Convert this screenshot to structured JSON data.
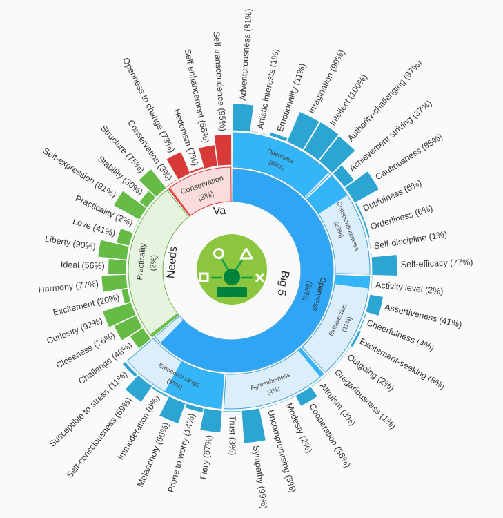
{
  "chart_data": {
    "type": "sunburst",
    "title": "",
    "center_labels": {
      "big5": "Big 5",
      "needs": "Needs",
      "values": "Va"
    },
    "groups": [
      {
        "key": "big5",
        "inner": {
          "name": "Openness",
          "value": 98
        },
        "colors": {
          "light": "#dbeef9",
          "stroke": "#3a9fd6",
          "inner_fill": "#2ea6f5",
          "dim_fill": "#33b5f7",
          "bar": "#2ca5d3"
        },
        "dimensions": [
          {
            "name": "Openness",
            "value": 98,
            "facets": [
              {
                "name": "Adventurousness",
                "value": 81
              },
              {
                "name": "Artistic interests",
                "value": 1
              },
              {
                "name": "Emotionality",
                "value": 11
              },
              {
                "name": "Imagination",
                "value": 99
              },
              {
                "name": "Intellect",
                "value": 100
              },
              {
                "name": "Authority-challenging",
                "value": 97
              }
            ]
          },
          {
            "name": "Conscientiousness",
            "value": 23,
            "facets": [
              {
                "name": "Achievement striving",
                "value": 37
              },
              {
                "name": "Cautiousness",
                "value": 85
              },
              {
                "name": "Dutifulness",
                "value": 6
              },
              {
                "name": "Orderliness",
                "value": 6
              },
              {
                "name": "Self-discipline",
                "value": 1
              },
              {
                "name": "Self-efficacy",
                "value": 77
              }
            ]
          },
          {
            "name": "Extraversion",
            "value": 11,
            "facets": [
              {
                "name": "Activity level",
                "value": 2
              },
              {
                "name": "Assertiveness",
                "value": 41
              },
              {
                "name": "Cheerfulness",
                "value": 4
              },
              {
                "name": "Excitement-seeking",
                "value": 8
              },
              {
                "name": "Outgoing",
                "value": 2
              },
              {
                "name": "Gregariousness",
                "value": 1
              }
            ]
          },
          {
            "name": "Agreeableness",
            "value": 4,
            "facets": [
              {
                "name": "Altruism",
                "value": 3
              },
              {
                "name": "Cooperation",
                "value": 36
              },
              {
                "name": "Modesty",
                "value": 2
              },
              {
                "name": "Uncompromising",
                "value": 3
              },
              {
                "name": "Sympathy",
                "value": 99
              },
              {
                "name": "Trust",
                "value": 3
              }
            ]
          },
          {
            "name": "Emotional range",
            "value": 55,
            "facets": [
              {
                "name": "Fiery",
                "value": 67
              },
              {
                "name": "Prone to worry",
                "value": 14
              },
              {
                "name": "Melancholy",
                "value": 66
              },
              {
                "name": "Immoderation",
                "value": 6
              },
              {
                "name": "Self-consciousness",
                "value": 59
              },
              {
                "name": "Susceptible to stress",
                "value": 11
              }
            ]
          }
        ]
      },
      {
        "key": "needs",
        "inner": {
          "name": "Practicality",
          "value": 2
        },
        "colors": {
          "light": "#e6f3df",
          "stroke": "#6cb350",
          "inner_fill": "#6bbf4a",
          "bar": "#66bb47"
        },
        "facets": [
          {
            "name": "Challenge",
            "value": 48
          },
          {
            "name": "Closeness",
            "value": 76
          },
          {
            "name": "Curiosity",
            "value": 92
          },
          {
            "name": "Excitement",
            "value": 20
          },
          {
            "name": "Harmony",
            "value": 77
          },
          {
            "name": "Ideal",
            "value": 56
          },
          {
            "name": "Liberty",
            "value": 90
          },
          {
            "name": "Love",
            "value": 41
          },
          {
            "name": "Practicality",
            "value": 2
          },
          {
            "name": "Self-expression",
            "value": 91
          },
          {
            "name": "Stability",
            "value": 30
          },
          {
            "name": "Structure",
            "value": 75
          }
        ]
      },
      {
        "key": "values",
        "inner": {
          "name": "Conservation",
          "value": 3
        },
        "colors": {
          "light": "#f9dcdc",
          "stroke": "#d9383a",
          "inner_fill": "#e04848",
          "bar": "#d83a3a"
        },
        "facets": [
          {
            "name": "Conservation",
            "value": 3
          },
          {
            "name": "Openness to change",
            "value": 73
          },
          {
            "name": "Hedonism",
            "value": 7
          },
          {
            "name": "Self-enhancement",
            "value": 66
          },
          {
            "name": "Self-transcendence",
            "value": 95
          }
        ]
      }
    ],
    "center_icon": {
      "bg": "#8cc63f",
      "figure": "#00843d"
    }
  }
}
